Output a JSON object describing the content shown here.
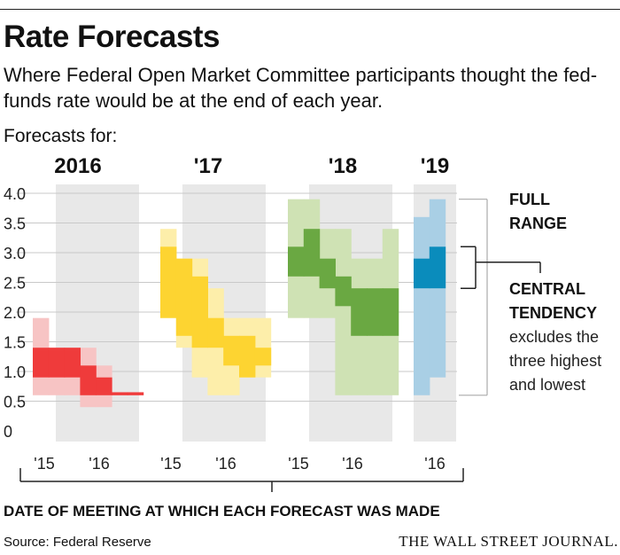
{
  "header": {
    "title": "Rate Forecasts",
    "subtitle": "Where Federal Open Market Committee participants thought the fed-funds rate would be at the end of each year.",
    "forecasts_for_label": "Forecasts for:"
  },
  "footer": {
    "source": "Source: Federal Reserve",
    "publisher": "THE WALL STREET JOURNAL."
  },
  "chart_data": {
    "type": "area",
    "title": "Rate Forecasts",
    "xlabel": "DATE OF MEETING AT WHICH EACH FORECAST WAS MADE",
    "ylabel": "",
    "ylim": [
      0,
      4.0
    ],
    "y_ticks": [
      "4.0",
      "3.5",
      "3.0",
      "2.5",
      "2.0",
      "1.5",
      "1.0",
      "0.5",
      "0"
    ],
    "grid": true,
    "legend": {
      "full_range_label_1": "FULL",
      "full_range_label_2": "RANGE",
      "central_tendency_label_1": "CENTRAL",
      "central_tendency_label_2": "TENDENCY",
      "central_tendency_note_1": "excludes the",
      "central_tendency_note_2": "three highest",
      "central_tendency_note_3": "and lowest",
      "placement": "right"
    },
    "panels": [
      {
        "name": "2016",
        "color_range": "#f7c4c4",
        "color_central": "#ef3b3b",
        "x_ticks": [
          "'15",
          "'16"
        ],
        "meetings": [
          {
            "range": [
              0.6,
              1.9
            ],
            "central": [
              0.9,
              1.4
            ]
          },
          {
            "range": [
              0.6,
              1.4
            ],
            "central": [
              0.9,
              1.4
            ]
          },
          {
            "range": [
              0.6,
              1.4
            ],
            "central": [
              0.9,
              1.4
            ]
          },
          {
            "range": [
              0.4,
              1.4
            ],
            "central": [
              0.6,
              1.1
            ]
          },
          {
            "range": [
              0.4,
              1.1
            ],
            "central": [
              0.6,
              0.9
            ]
          },
          {
            "range": [
              0.6,
              0.65
            ],
            "central": [
              0.6,
              0.65
            ]
          },
          {
            "range": [
              0.6,
              0.65
            ],
            "central": [
              0.6,
              0.65
            ]
          }
        ]
      },
      {
        "name": "'17",
        "color_range": "#fdeeaa",
        "color_central": "#fdd431",
        "x_ticks": [
          "'15",
          "'16"
        ],
        "meetings": [
          {
            "range": [
              1.9,
              3.4
            ],
            "central": [
              1.9,
              3.1
            ]
          },
          {
            "range": [
              1.4,
              2.9
            ],
            "central": [
              1.6,
              2.9
            ]
          },
          {
            "range": [
              0.9,
              2.9
            ],
            "central": [
              1.4,
              2.6
            ]
          },
          {
            "range": [
              0.6,
              2.4
            ],
            "central": [
              1.4,
              1.9
            ]
          },
          {
            "range": [
              0.6,
              1.9
            ],
            "central": [
              1.1,
              1.6
            ]
          },
          {
            "range": [
              0.9,
              1.9
            ],
            "central": [
              0.9,
              1.6
            ]
          },
          {
            "range": [
              0.9,
              1.9
            ],
            "central": [
              1.1,
              1.4
            ]
          }
        ]
      },
      {
        "name": "'18",
        "color_range": "#cfe2b4",
        "color_central": "#6aa842",
        "x_ticks": [
          "'15",
          "'16"
        ],
        "meetings": [
          {
            "range": [
              1.9,
              3.9
            ],
            "central": [
              2.6,
              3.1
            ]
          },
          {
            "range": [
              1.9,
              3.9
            ],
            "central": [
              2.6,
              3.4
            ]
          },
          {
            "range": [
              1.9,
              3.4
            ],
            "central": [
              2.4,
              2.9
            ]
          },
          {
            "range": [
              0.6,
              3.4
            ],
            "central": [
              2.1,
              2.6
            ]
          },
          {
            "range": [
              0.6,
              2.9
            ],
            "central": [
              1.6,
              2.4
            ]
          },
          {
            "range": [
              0.6,
              2.9
            ],
            "central": [
              1.6,
              2.4
            ]
          },
          {
            "range": [
              0.6,
              3.4
            ],
            "central": [
              1.6,
              2.4
            ]
          }
        ]
      },
      {
        "name": "'19",
        "color_range": "#a9cfe5",
        "color_central": "#0a8cbc",
        "x_ticks": [
          "'16"
        ],
        "meetings": [
          {
            "range": [
              0.6,
              3.6
            ],
            "central": [
              2.4,
              2.9
            ]
          },
          {
            "range": [
              0.9,
              3.9
            ],
            "central": [
              2.4,
              3.1
            ]
          }
        ]
      }
    ]
  }
}
